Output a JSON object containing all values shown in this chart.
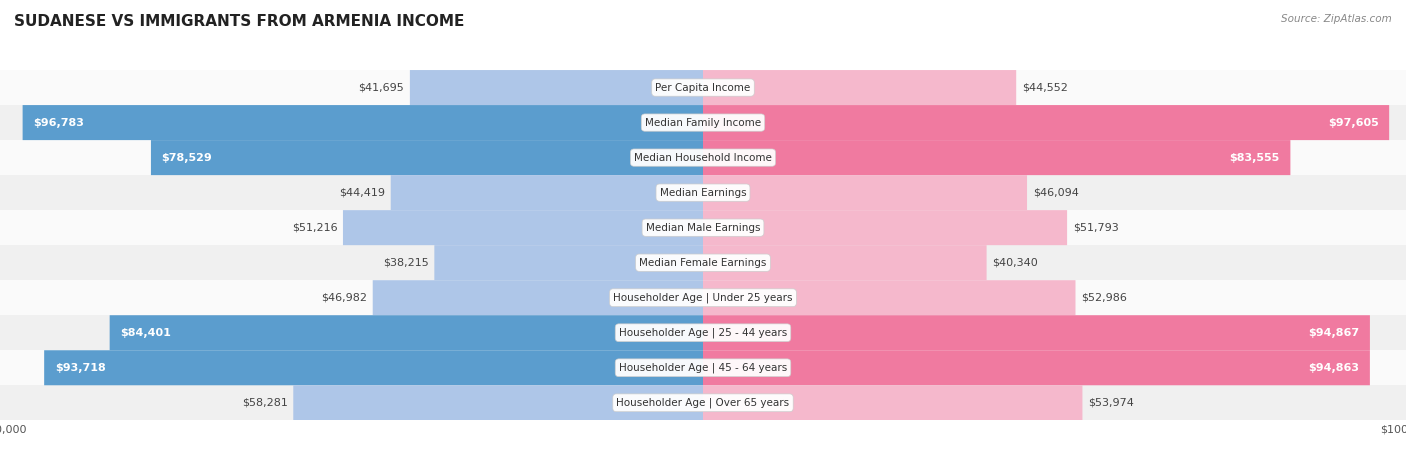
{
  "title": "SUDANESE VS IMMIGRANTS FROM ARMENIA INCOME",
  "source": "Source: ZipAtlas.com",
  "categories": [
    "Per Capita Income",
    "Median Family Income",
    "Median Household Income",
    "Median Earnings",
    "Median Male Earnings",
    "Median Female Earnings",
    "Householder Age | Under 25 years",
    "Householder Age | 25 - 44 years",
    "Householder Age | 45 - 64 years",
    "Householder Age | Over 65 years"
  ],
  "sudanese": [
    41695,
    96783,
    78529,
    44419,
    51216,
    38215,
    46982,
    84401,
    93718,
    58281
  ],
  "armenia": [
    44552,
    97605,
    83555,
    46094,
    51793,
    40340,
    52986,
    94867,
    94863,
    53974
  ],
  "sudanese_labels": [
    "$41,695",
    "$96,783",
    "$78,529",
    "$44,419",
    "$51,216",
    "$38,215",
    "$46,982",
    "$84,401",
    "$93,718",
    "$58,281"
  ],
  "armenia_labels": [
    "$44,552",
    "$97,605",
    "$83,555",
    "$46,094",
    "$51,793",
    "$40,340",
    "$52,986",
    "$94,867",
    "$94,863",
    "$53,974"
  ],
  "max_value": 100000,
  "blue_light": "#aec6e8",
  "blue_mid": "#7aaddb",
  "blue_dark": "#5b9dce",
  "pink_light": "#f5b8cc",
  "pink_dark": "#f07aa0",
  "bg_row_odd": "#f0f0f0",
  "bg_row_even": "#fafafa",
  "title_fontsize": 11,
  "label_fontsize": 8,
  "category_fontsize": 7.5,
  "axis_fontsize": 8
}
